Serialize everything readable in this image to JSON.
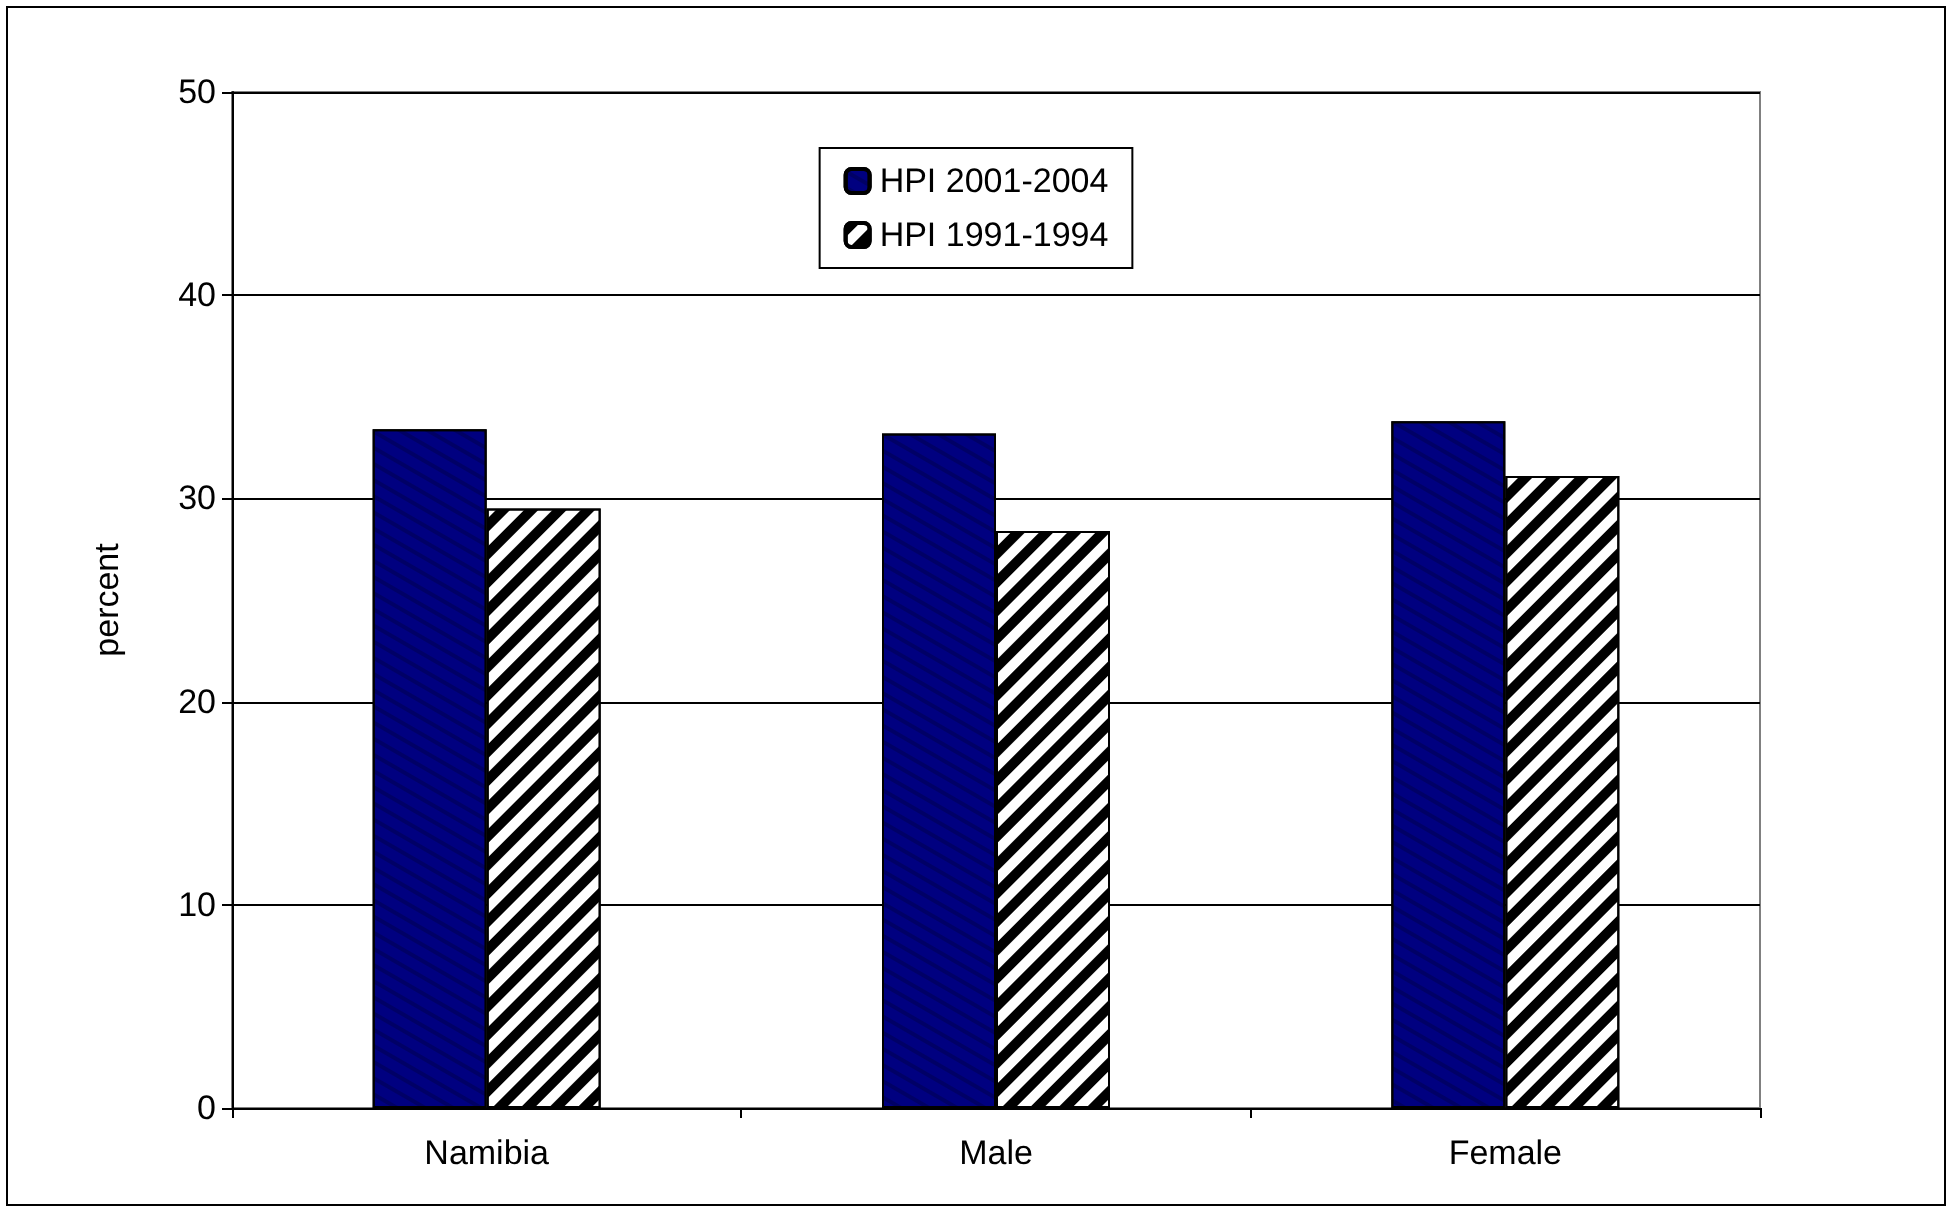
{
  "chart_data": {
    "type": "bar",
    "ylabel": "percent",
    "categories": [
      "Namibia",
      "Male",
      "Female"
    ],
    "series": [
      {
        "name": "HPI 2001-2004",
        "color": "#000080",
        "values": [
          33.4,
          33.2,
          33.8
        ]
      },
      {
        "name": "HPI 1991-1994",
        "color": "#000000",
        "values": [
          29.5,
          28.4,
          31.1
        ]
      }
    ],
    "ylim": [
      0,
      50
    ],
    "yticks": [
      0,
      10,
      20,
      30,
      40,
      50
    ],
    "grid": "y",
    "legend": "top"
  }
}
